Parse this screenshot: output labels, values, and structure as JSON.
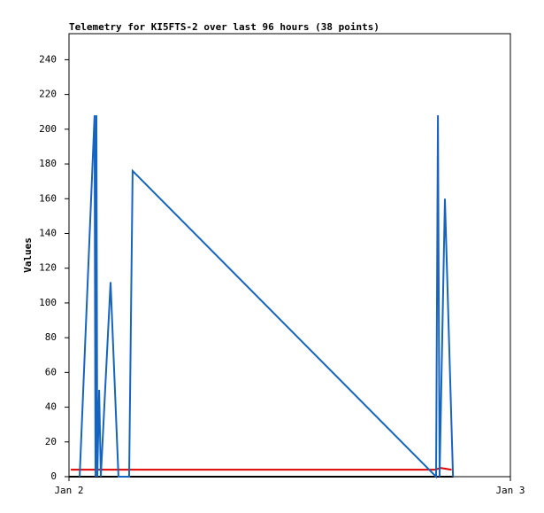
{
  "chart_data": {
    "type": "line",
    "title": "Telemetry for KI5FTS-2 over last 96 hours (38 points)",
    "y_label": "Values",
    "xlim": [
      0,
      24
    ],
    "xticks": [
      {
        "value": 0,
        "label": "Jan 2"
      },
      {
        "value": 24,
        "label": "Jan 3"
      }
    ],
    "ylim": [
      0,
      255
    ],
    "yticks": [
      0,
      20,
      40,
      60,
      80,
      100,
      120,
      140,
      160,
      180,
      200,
      220,
      240
    ],
    "series": [
      {
        "color": "#000000",
        "x": [
          0,
          20.9
        ],
        "values": [
          0,
          0
        ]
      },
      {
        "color": "#e00000",
        "x": [
          0.1,
          19.9,
          20.2,
          20.8
        ],
        "values": [
          4,
          4,
          5,
          4
        ]
      },
      {
        "color": "#1565c0",
        "x": [
          0.58,
          1.39,
          1.44,
          1.49,
          1.54,
          1.64,
          1.73,
          2.26,
          2.69,
          3.27,
          3.46,
          19.96,
          20.06,
          20.15,
          20.44,
          20.88
        ],
        "values": [
          0,
          208,
          0,
          208,
          0,
          50,
          0,
          112,
          0,
          0,
          176,
          0,
          208,
          0,
          160,
          0
        ]
      }
    ]
  }
}
